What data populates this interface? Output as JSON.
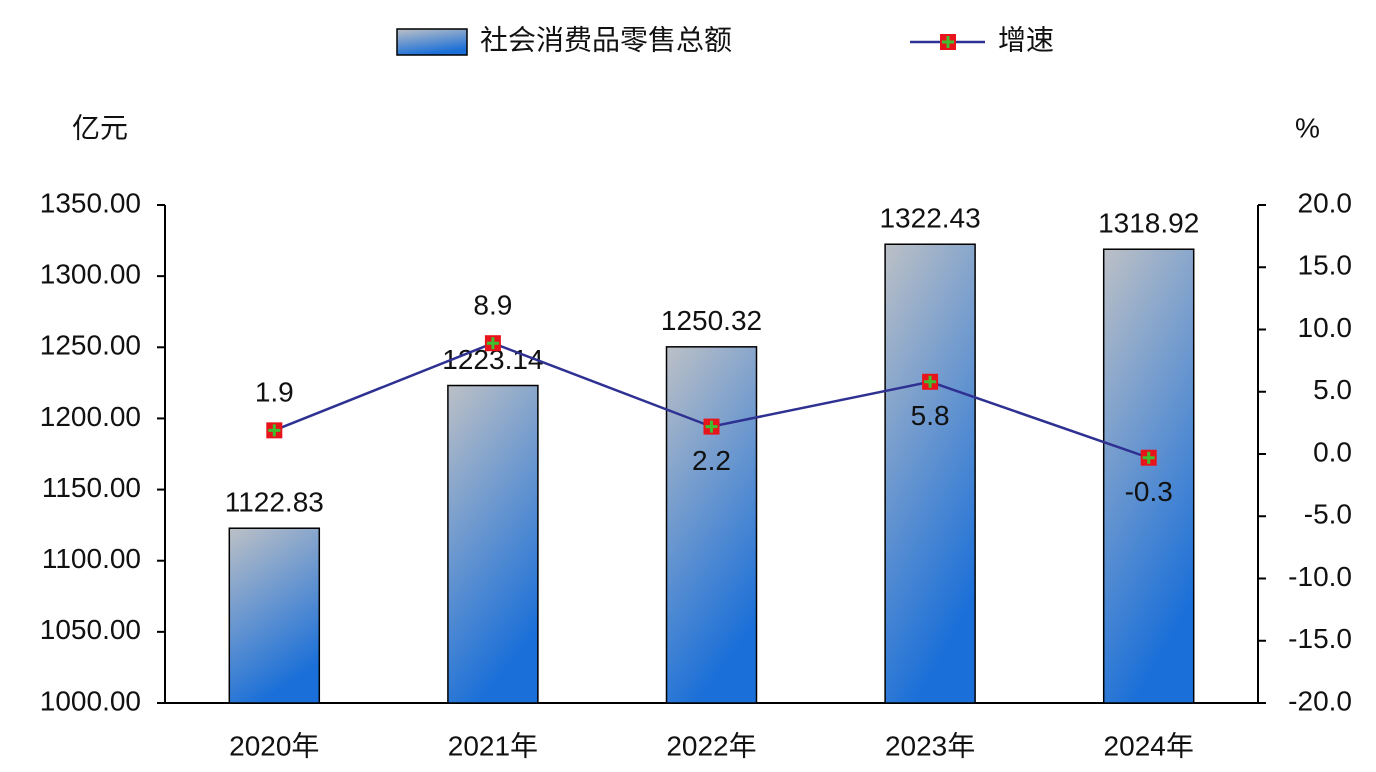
{
  "chart_data": {
    "type": "combo",
    "y_axis_label": "亿元",
    "y2_axis_label": "%",
    "categories": [
      "2020年",
      "2021年",
      "2022年",
      "2023年",
      "2024年"
    ],
    "series": [
      {
        "name": "社会消费品零售总额",
        "type": "bar",
        "color": "#1a6fd8",
        "values": [
          1122.83,
          1223.14,
          1250.32,
          1322.43,
          1318.92
        ]
      },
      {
        "name": "增速",
        "type": "line",
        "color": "#2e3192",
        "axis": "y2",
        "values": [
          1.9,
          8.9,
          2.2,
          5.8,
          -0.3
        ]
      }
    ],
    "ylim": [
      1000,
      1350
    ],
    "yticks": [
      {
        "value": 1000,
        "label": "1000.00"
      },
      {
        "value": 1050,
        "label": "1050.00"
      },
      {
        "value": 1100,
        "label": "1100.00"
      },
      {
        "value": 1150,
        "label": "1150.00"
      },
      {
        "value": 1200,
        "label": "1200.00"
      },
      {
        "value": 1250,
        "label": "1250.00"
      },
      {
        "value": 1300,
        "label": "1300.00"
      },
      {
        "value": 1350,
        "label": "1350.00"
      }
    ],
    "y2lim": [
      -20,
      20
    ],
    "y2ticks": [
      {
        "value": -20,
        "label": "-20.0"
      },
      {
        "value": -15,
        "label": "-15.0"
      },
      {
        "value": -10,
        "label": "-10.0"
      },
      {
        "value": -5,
        "label": "-5.0"
      },
      {
        "value": 0,
        "label": "0.0"
      },
      {
        "value": 5,
        "label": "5.0"
      },
      {
        "value": 10,
        "label": "10.0"
      },
      {
        "value": 15,
        "label": "15.0"
      },
      {
        "value": 20,
        "label": "20.0"
      }
    ],
    "grid": false,
    "legend": "top"
  }
}
